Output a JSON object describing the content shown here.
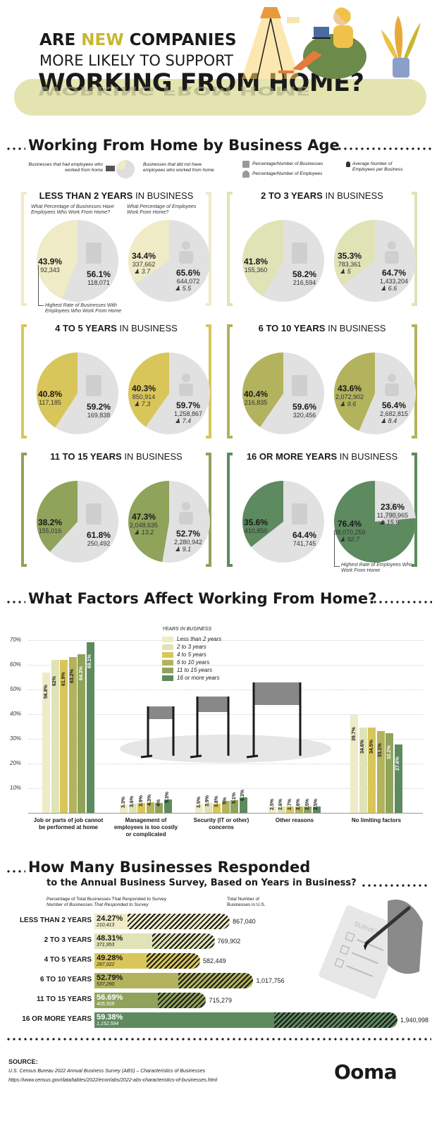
{
  "header": {
    "line1_pre": "ARE ",
    "line1_accent": "NEW",
    "line1_post": " COMPANIES",
    "line2": "MORE LIKELY TO SUPPORT",
    "line3": "WORKING FROM HOME?",
    "line3_reflection": "WORKING FROM HOME",
    "accent_color": "#c8b631"
  },
  "section1": {
    "title": "Working From Home by Business Age",
    "legend": {
      "had": "Businesses that had employees who worked from home",
      "not": "Businesses that did not have employees who worked from home",
      "pct_businesses": "Percentage/Number of Businesses",
      "pct_employees": "Percentage/Number of Employees",
      "avg": "Average Number of Employees per Business"
    },
    "q_businesses": "What Percentage of Businesses Have Employees Who Work From Home?",
    "q_employees": "What Percentage of Employees Work From Home?",
    "note_businesses": "Highest Rate of Businesses With Employees Who Work From Home",
    "note_employees": "Highest Rate of Employees Who Work From Home",
    "panels": [
      {
        "bold": "LESS THAN 2 YEARS",
        "rest": " IN BUSINESS",
        "color": "#efebc7",
        "b_yes_pct": "43.9%",
        "b_yes_n": "92,343",
        "b_no_pct": "56.1%",
        "b_no_n": "118,071",
        "e_yes_pct": "34.4%",
        "e_yes_n": "337,662",
        "e_yes_avg": "3.7",
        "e_no_pct": "65.6%",
        "e_no_n": "644,072",
        "e_no_avg": "5.5",
        "b_yes_frac": 0.439,
        "e_yes_frac": 0.344
      },
      {
        "bold": "2 TO 3 YEARS",
        "rest": " IN BUSINESS",
        "color": "#dfe3b6",
        "b_yes_pct": "41.8%",
        "b_yes_n": "155,360",
        "b_no_pct": "58.2%",
        "b_no_n": "216,594",
        "e_yes_pct": "35.3%",
        "e_yes_n": "783,361",
        "e_yes_avg": "5",
        "e_no_pct": "64.7%",
        "e_no_n": "1,433,204",
        "e_no_avg": "6.6",
        "b_yes_frac": 0.418,
        "e_yes_frac": 0.353
      },
      {
        "bold": "4 TO 5 YEARS",
        "rest": " IN BUSINESS",
        "color": "#d9c65a",
        "b_yes_pct": "40.8%",
        "b_yes_n": "117,185",
        "b_no_pct": "59.2%",
        "b_no_n": "169,838",
        "e_yes_pct": "40.3%",
        "e_yes_n": "850,914",
        "e_yes_avg": "7.3",
        "e_no_pct": "59.7%",
        "e_no_n": "1,258,867",
        "e_no_avg": "7.4",
        "b_yes_frac": 0.408,
        "e_yes_frac": 0.403
      },
      {
        "bold": "6 TO 10 YEARS",
        "rest": " IN BUSINESS",
        "color": "#b2b35c",
        "b_yes_pct": "40.4%",
        "b_yes_n": "216,835",
        "b_no_pct": "59.6%",
        "b_no_n": "320,456",
        "e_yes_pct": "43.6%",
        "e_yes_n": "2,072,902",
        "e_yes_avg": "9.6",
        "e_no_pct": "56.4%",
        "e_no_n": "2,682,815",
        "e_no_avg": "8.4",
        "b_yes_frac": 0.404,
        "e_yes_frac": 0.436
      },
      {
        "bold": "11 TO 15 YEARS",
        "rest": " IN BUSINESS",
        "color": "#8fa35a",
        "b_yes_pct": "38.2%",
        "b_yes_n": "155,016",
        "b_no_pct": "61.8%",
        "b_no_n": "250,492",
        "e_yes_pct": "47.3%",
        "e_yes_n": "2,048,635",
        "e_yes_avg": "13.2",
        "e_no_pct": "52.7%",
        "e_no_n": "2,280,942",
        "e_no_avg": "9.1",
        "b_yes_frac": 0.382,
        "e_yes_frac": 0.473
      },
      {
        "bold": "16 OR MORE YEARS",
        "rest": " IN BUSINESS",
        "color": "#5d8a5e",
        "b_yes_pct": "35.6%",
        "b_yes_n": "410,850",
        "b_no_pct": "64.4%",
        "b_no_n": "741,745",
        "e_yes_pct": "76.4%",
        "e_yes_n": "38,070,259",
        "e_yes_avg": "92.7",
        "e_no_pct": "23.6%",
        "e_no_n": "11,790,965",
        "e_no_avg": "15.9",
        "b_yes_frac": 0.356,
        "e_yes_frac": 0.764
      }
    ]
  },
  "section2": {
    "title": "What Factors Affect Working From Home?",
    "chart_data": {
      "type": "bar",
      "legend_title": "YEARS IN BUSINESS",
      "categories": [
        "Job or parts of job cannot be performed at home",
        "Management of employees is too costly or complicated",
        "Security (IT or other) concerns",
        "Other reasons",
        "No limiting factors"
      ],
      "series": [
        {
          "name": "Less than 2 years",
          "color": "#efebc7",
          "values": [
            56.8,
            3.3,
            3.5,
            2.5,
            39.7
          ],
          "labels": [
            "56.8%",
            "3.3%",
            "3.5%",
            "2.5%",
            "39.7%"
          ]
        },
        {
          "name": "2 to 3 years",
          "color": "#dfe3b6",
          "values": [
            62,
            3.6,
            3.9,
            2.6,
            34.6
          ],
          "labels": [
            "62%",
            "3.6%",
            "3.9%",
            "2.6%",
            "34.6%"
          ]
        },
        {
          "name": "4 to 5 years",
          "color": "#d9c65a",
          "values": [
            61.9,
            3.9,
            3.8,
            2.7,
            34.5
          ],
          "labels": [
            "61.9%",
            "3.9%",
            "3.8%",
            "2.7%",
            "34.5%"
          ]
        },
        {
          "name": "6 to 10 years",
          "color": "#b2b35c",
          "values": [
            63.2,
            4.3,
            5,
            2.6,
            33.1
          ],
          "labels": [
            "63.2%",
            "4.3%",
            "5%",
            "2.6%",
            "33.1%"
          ]
        },
        {
          "name": "11 to 15 years",
          "color": "#8fa35a",
          "values": [
            64.3,
            4,
            5.1,
            2.5,
            32.2
          ],
          "labels": [
            "64.3%",
            "4%",
            "5.1%",
            "2.5%",
            "32.2%"
          ]
        },
        {
          "name": "16 or more years",
          "color": "#5d8a5e",
          "values": [
            69.1,
            5.3,
            6.3,
            2.5,
            27.6
          ],
          "labels": [
            "69.1%",
            "5.3%",
            "6.3%",
            "2.5%",
            "27.6%"
          ]
        }
      ],
      "yticks": [
        "70%",
        "60%",
        "50%",
        "40%",
        "30%",
        "20%",
        "10%"
      ],
      "ylim": [
        0,
        70
      ]
    }
  },
  "section3": {
    "title_line1": "How Many Businesses Responded",
    "title_line2": "to the Annual Business Survey, Based on Years in Business?",
    "col1_title": "Percentage of Total Businesses That Responded to Survey",
    "col1_sub": "Number of Businesses That Responded to Survey",
    "col2_title": "Total Number of Businesses in U.S.",
    "survey_label": "SURVEY",
    "rows": [
      {
        "label": "LESS THAN 2 YEARS",
        "pct": "24.27%",
        "n": "210,413",
        "total": "867,040",
        "total_num": 867040,
        "frac": 0.2427,
        "color": "#efebc7"
      },
      {
        "label": "2 TO 3 YEARS",
        "pct": "48.31%",
        "n": "371,953",
        "total": "769,902",
        "total_num": 769902,
        "frac": 0.4831,
        "color": "#dfe3b6"
      },
      {
        "label": "4 TO 5 YEARS",
        "pct": "49.28%",
        "n": "287,022",
        "total": "582,449",
        "total_num": 582449,
        "frac": 0.4928,
        "color": "#d9c65a"
      },
      {
        "label": "6 TO 10 YEARS",
        "pct": "52.79%",
        "n": "537,290",
        "total": "1,017,756",
        "total_num": 1017756,
        "frac": 0.5279,
        "color": "#b2b35c"
      },
      {
        "label": "11 TO 15 YEARS",
        "pct": "56.69%",
        "n": "405,509",
        "total": "715,279",
        "total_num": 715279,
        "frac": 0.5669,
        "color": "#8fa35a"
      },
      {
        "label": "16 OR MORE YEARS",
        "pct": "59.38%",
        "n": "1,152,594",
        "total": "1,940,998",
        "total_num": 1940998,
        "frac": 0.5938,
        "color": "#5d8a5e"
      }
    ]
  },
  "footer": {
    "source_label": "SOURCE:",
    "source_text": "U.S. Census Bureau 2022 Annual Business Survey (ABS) – Characteristics of Businesses",
    "source_url": "https://www.census.gov/data/tables/2022/econ/abs/2022-abs-characteristics-of-businesses.html",
    "brand": "Ooma"
  }
}
